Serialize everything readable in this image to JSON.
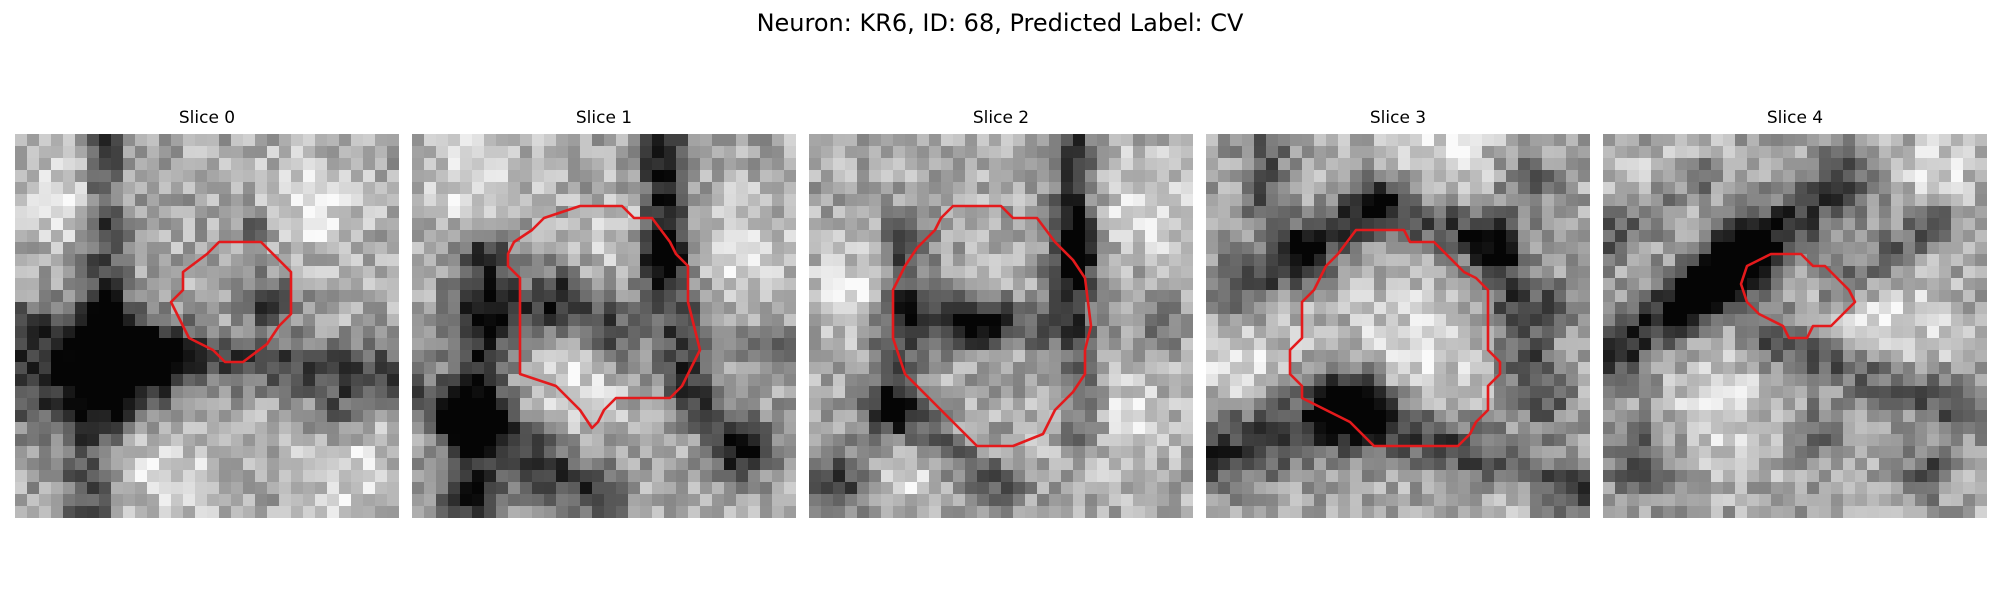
{
  "figure": {
    "title": "Neuron: KR6, ID: 68, Predicted Label: CV"
  },
  "colors": {
    "contour": "#e41a1c",
    "background": "#ffffff"
  },
  "slices": [
    {
      "title": "Slice 0"
    },
    {
      "title": "Slice 1"
    },
    {
      "title": "Slice 2"
    },
    {
      "title": "Slice 3"
    },
    {
      "title": "Slice 4"
    }
  ]
}
